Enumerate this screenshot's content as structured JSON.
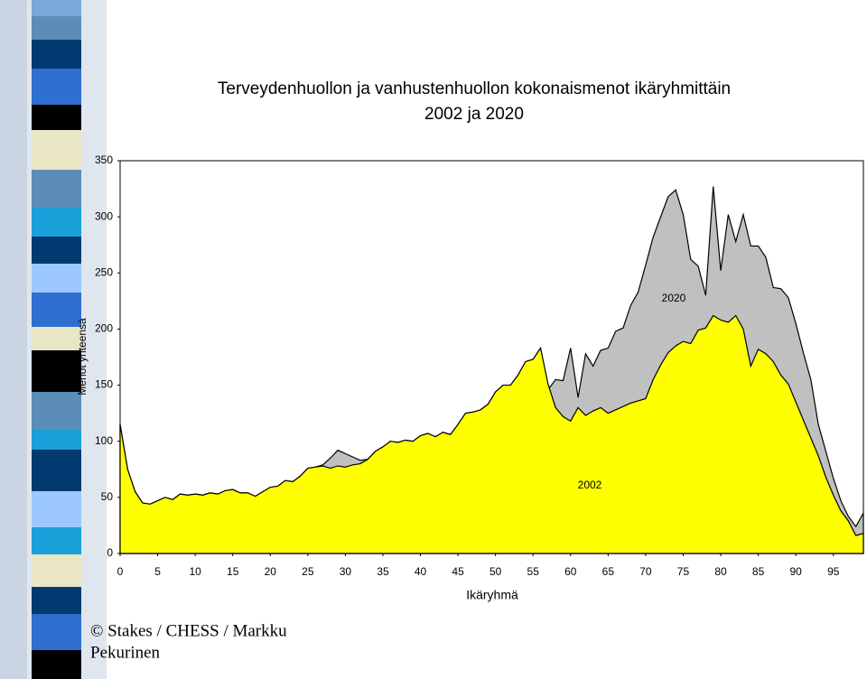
{
  "chart_data": {
    "type": "area",
    "title": "Terveydenhuollon ja vanhustenhuollon kokonaismenot ikäryhmittäin",
    "subtitle": "2002 ja 2020",
    "x_label": "Ikäryhmä",
    "y_label": "Menot yhteensä",
    "credit": [
      "© Stakes / CHESS / Markku",
      "Pekurinen"
    ],
    "x": [
      0,
      1,
      2,
      3,
      4,
      5,
      6,
      7,
      8,
      9,
      10,
      11,
      12,
      13,
      14,
      15,
      16,
      17,
      18,
      19,
      20,
      21,
      22,
      23,
      24,
      25,
      26,
      27,
      28,
      29,
      30,
      31,
      32,
      33,
      34,
      35,
      36,
      37,
      38,
      39,
      40,
      41,
      42,
      43,
      44,
      45,
      46,
      47,
      48,
      49,
      50,
      51,
      52,
      53,
      54,
      55,
      56,
      57,
      58,
      59,
      60,
      61,
      62,
      63,
      64,
      65,
      66,
      67,
      68,
      69,
      70,
      71,
      72,
      73,
      74,
      75,
      76,
      77,
      78,
      79,
      80,
      81,
      82,
      83,
      84,
      85,
      86,
      87,
      88,
      89,
      90,
      91,
      92,
      93,
      94,
      95,
      96,
      97,
      98,
      99
    ],
    "series": [
      {
        "name": "2020",
        "color": "#c0c0c0",
        "values": [
          115,
          75,
          55,
          45,
          44,
          47,
          50,
          48,
          53,
          52,
          53,
          52,
          54,
          53,
          56,
          57,
          54,
          54,
          51,
          55,
          59,
          60,
          65,
          64,
          69,
          76,
          77,
          79,
          85,
          92,
          89,
          86,
          83,
          84,
          91,
          95,
          100,
          99,
          101,
          100,
          105,
          107,
          104,
          108,
          106,
          115,
          125,
          126,
          128,
          133,
          144,
          150,
          150,
          159,
          171,
          173,
          183,
          146,
          155,
          154,
          183,
          139,
          178,
          167,
          181,
          183,
          198,
          201,
          221,
          233,
          257,
          282,
          300,
          318,
          324,
          302,
          262,
          256,
          230,
          327,
          252,
          302,
          278,
          302,
          274,
          274,
          264,
          237,
          236,
          228,
          205,
          179,
          155,
          115,
          91,
          67,
          47,
          33,
          24,
          36
        ]
      },
      {
        "name": "2002",
        "color": "#ffff00",
        "values": [
          115,
          75,
          55,
          45,
          44,
          47,
          50,
          48,
          53,
          52,
          53,
          52,
          54,
          53,
          56,
          57,
          54,
          54,
          51,
          55,
          59,
          60,
          65,
          64,
          69,
          76,
          77,
          78,
          76,
          78,
          77,
          79,
          80,
          84,
          91,
          95,
          100,
          99,
          101,
          100,
          105,
          107,
          104,
          108,
          106,
          115,
          125,
          126,
          128,
          133,
          144,
          150,
          150,
          159,
          171,
          173,
          183,
          151,
          130,
          122,
          118,
          130,
          123,
          127,
          130,
          125,
          128,
          131,
          134,
          136,
          138,
          155,
          168,
          179,
          185,
          189,
          187,
          199,
          201,
          212,
          208,
          206,
          212,
          200,
          167,
          182,
          178,
          171,
          159,
          151,
          135,
          119,
          103,
          87,
          68,
          52,
          38,
          29,
          16,
          18
        ]
      }
    ],
    "xlim": [
      0,
      99
    ],
    "xticks": [
      0,
      5,
      10,
      15,
      20,
      25,
      30,
      35,
      40,
      45,
      50,
      55,
      60,
      65,
      70,
      75,
      80,
      85,
      90,
      95
    ],
    "ylim": [
      0,
      350
    ],
    "yticks": [
      0,
      50,
      100,
      150,
      200,
      250,
      300,
      350
    ]
  }
}
